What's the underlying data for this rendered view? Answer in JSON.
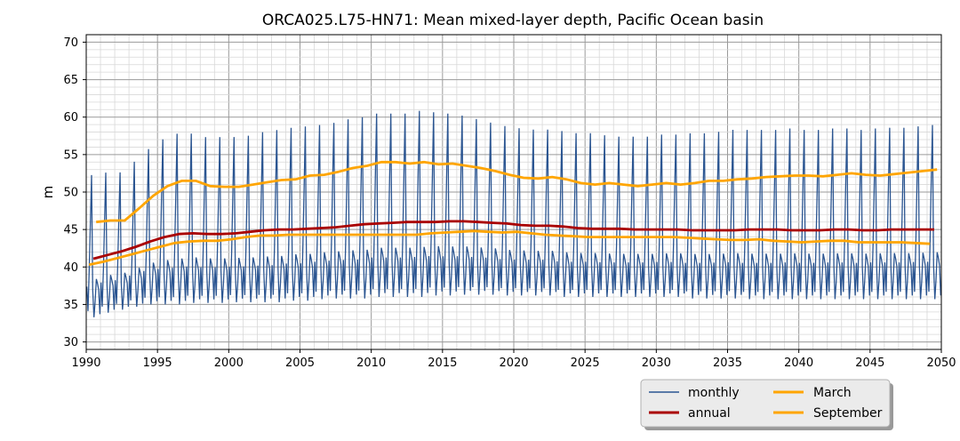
{
  "chart_data": {
    "type": "line",
    "title": "ORCA025.L75-HN71: Mean mixed-layer depth, Pacific Ocean basin",
    "xlabel": "",
    "ylabel": "m",
    "xlim": [
      1990,
      2050
    ],
    "ylim": [
      29,
      71
    ],
    "x_ticks": [
      1990,
      1995,
      2000,
      2005,
      2010,
      2015,
      2020,
      2025,
      2030,
      2035,
      2040,
      2045,
      2050
    ],
    "y_ticks": [
      30,
      35,
      40,
      45,
      50,
      55,
      60,
      65,
      70
    ],
    "grid": true,
    "legend_position": "below-right",
    "legend": [
      "monthly",
      "annual",
      "March",
      "September"
    ],
    "series": [
      {
        "name": "monthly",
        "color": "#2b5591",
        "monthly_peaks": [
          [
            1990,
            53.7
          ],
          [
            1991,
            54.0
          ],
          [
            1992,
            54.0
          ],
          [
            1993,
            55.5
          ],
          [
            1994,
            57.3
          ],
          [
            1995,
            58.7
          ],
          [
            1996,
            59.5
          ],
          [
            1997,
            59.5
          ],
          [
            1998,
            59.0
          ],
          [
            1999,
            59.0
          ],
          [
            2000,
            59.0
          ],
          [
            2001,
            59.2
          ],
          [
            2002,
            59.7
          ],
          [
            2003,
            60.0
          ],
          [
            2004,
            60.3
          ],
          [
            2005,
            60.5
          ],
          [
            2006,
            60.7
          ],
          [
            2007,
            61.0
          ],
          [
            2008,
            61.5
          ],
          [
            2009,
            61.8
          ],
          [
            2010,
            62.3
          ],
          [
            2011,
            62.3
          ],
          [
            2012,
            62.3
          ],
          [
            2013,
            62.7
          ],
          [
            2014,
            62.5
          ],
          [
            2015,
            62.3
          ],
          [
            2016,
            62.0
          ],
          [
            2017,
            61.5
          ],
          [
            2018,
            61.0
          ],
          [
            2019,
            60.5
          ],
          [
            2020,
            60.2
          ],
          [
            2021,
            60.0
          ],
          [
            2022,
            60.0
          ],
          [
            2023,
            59.8
          ],
          [
            2024,
            59.5
          ],
          [
            2025,
            59.5
          ],
          [
            2026,
            59.2
          ],
          [
            2027,
            59.0
          ],
          [
            2028,
            59.0
          ],
          [
            2029,
            59.0
          ],
          [
            2030,
            59.3
          ],
          [
            2031,
            59.3
          ],
          [
            2032,
            59.5
          ],
          [
            2033,
            59.5
          ],
          [
            2034,
            59.7
          ],
          [
            2035,
            60.0
          ],
          [
            2036,
            60.0
          ],
          [
            2037,
            60.0
          ],
          [
            2038,
            60.0
          ],
          [
            2039,
            60.2
          ],
          [
            2040,
            60.0
          ],
          [
            2041,
            60.0
          ],
          [
            2042,
            60.2
          ],
          [
            2043,
            60.2
          ],
          [
            2044,
            60.0
          ],
          [
            2045,
            60.2
          ],
          [
            2046,
            60.3
          ],
          [
            2047,
            60.3
          ],
          [
            2048,
            60.5
          ],
          [
            2049,
            60.7
          ]
        ],
        "monthly_troughs": [
          [
            1990,
            33.3
          ],
          [
            1991,
            33.9
          ],
          [
            1992,
            34.3
          ],
          [
            1993,
            34.7
          ],
          [
            1994,
            35.0
          ],
          [
            1995,
            35.0
          ],
          [
            1996,
            35.0
          ],
          [
            1997,
            35.2
          ],
          [
            1998,
            35.2
          ],
          [
            1999,
            35.2
          ],
          [
            2000,
            35.3
          ],
          [
            2001,
            35.3
          ],
          [
            2002,
            35.3
          ],
          [
            2003,
            35.3
          ],
          [
            2004,
            35.5
          ],
          [
            2005,
            35.5
          ],
          [
            2006,
            35.7
          ],
          [
            2007,
            35.8
          ],
          [
            2008,
            35.8
          ],
          [
            2009,
            35.8
          ],
          [
            2010,
            36.0
          ],
          [
            2011,
            36.0
          ],
          [
            2012,
            36.0
          ],
          [
            2013,
            36.0
          ],
          [
            2014,
            36.2
          ],
          [
            2015,
            36.2
          ],
          [
            2016,
            36.3
          ],
          [
            2017,
            36.3
          ],
          [
            2018,
            36.3
          ],
          [
            2019,
            36.2
          ],
          [
            2020,
            36.2
          ],
          [
            2021,
            36.2
          ],
          [
            2022,
            36.2
          ],
          [
            2023,
            36.0
          ],
          [
            2024,
            36.0
          ],
          [
            2025,
            36.0
          ],
          [
            2026,
            36.0
          ],
          [
            2027,
            36.0
          ],
          [
            2028,
            36.0
          ],
          [
            2029,
            36.0
          ],
          [
            2030,
            36.0
          ],
          [
            2031,
            36.0
          ],
          [
            2032,
            35.8
          ],
          [
            2033,
            35.8
          ],
          [
            2034,
            35.8
          ],
          [
            2035,
            35.8
          ],
          [
            2036,
            35.7
          ],
          [
            2037,
            35.7
          ],
          [
            2038,
            35.7
          ],
          [
            2039,
            35.7
          ],
          [
            2040,
            35.7
          ],
          [
            2041,
            35.7
          ],
          [
            2042,
            35.7
          ],
          [
            2043,
            35.7
          ],
          [
            2044,
            35.7
          ],
          [
            2045,
            35.7
          ],
          [
            2046,
            35.7
          ],
          [
            2047,
            35.7
          ],
          [
            2048,
            35.7
          ],
          [
            2049,
            35.7
          ]
        ]
      },
      {
        "name": "annual",
        "color": "#aa0000",
        "x": [
          1990.5,
          1991.5,
          1992.5,
          1993.5,
          1994.5,
          1995.5,
          1996.5,
          1997.5,
          1998.5,
          1999.5,
          2000.5,
          2001.5,
          2002.5,
          2003.5,
          2004.5,
          2005.5,
          2006.5,
          2007.5,
          2008.5,
          2009.5,
          2010.5,
          2011.5,
          2012.5,
          2013.5,
          2014.5,
          2015.5,
          2016.5,
          2017.5,
          2018.5,
          2019.5,
          2020.5,
          2021.5,
          2022.5,
          2023.5,
          2024.5,
          2025.5,
          2026.5,
          2027.5,
          2028.5,
          2029.5,
          2030.5,
          2031.5,
          2032.5,
          2033.5,
          2034.5,
          2035.5,
          2036.5,
          2037.5,
          2038.5,
          2039.5,
          2040.5,
          2041.5,
          2042.5,
          2043.5,
          2044.5,
          2045.5,
          2046.5,
          2047.5,
          2048.5,
          2049.5
        ],
        "values": [
          41.1,
          41.6,
          42.1,
          42.7,
          43.4,
          44.0,
          44.4,
          44.5,
          44.4,
          44.4,
          44.5,
          44.7,
          44.9,
          45.0,
          45.0,
          45.1,
          45.2,
          45.3,
          45.5,
          45.7,
          45.8,
          45.9,
          46.0,
          46.0,
          46.0,
          46.1,
          46.1,
          46.0,
          45.9,
          45.8,
          45.6,
          45.5,
          45.5,
          45.4,
          45.2,
          45.1,
          45.1,
          45.1,
          45.0,
          45.0,
          45.0,
          45.0,
          44.9,
          44.9,
          44.9,
          44.9,
          45.0,
          45.0,
          45.0,
          44.9,
          44.9,
          44.9,
          45.0,
          45.0,
          44.9,
          44.9,
          45.0,
          45.0,
          45.0,
          45.0
        ]
      },
      {
        "name": "March",
        "color": "#ffa500",
        "x": [
          1990.7,
          1991.7,
          1992.7,
          1993.7,
          1994.7,
          1995.7,
          1996.7,
          1997.7,
          1998.7,
          1999.7,
          2000.7,
          2001.7,
          2002.7,
          2003.7,
          2004.7,
          2005.7,
          2006.7,
          2007.7,
          2008.7,
          2009.7,
          2010.7,
          2011.7,
          2012.7,
          2013.7,
          2014.7,
          2015.7,
          2016.7,
          2017.7,
          2018.7,
          2019.7,
          2020.7,
          2021.7,
          2022.7,
          2023.7,
          2024.7,
          2025.7,
          2026.7,
          2027.7,
          2028.7,
          2029.7,
          2030.7,
          2031.7,
          2032.7,
          2033.7,
          2034.7,
          2035.7,
          2036.7,
          2037.7,
          2038.7,
          2039.7,
          2040.7,
          2041.7,
          2042.7,
          2043.7,
          2044.7,
          2045.7,
          2046.7,
          2047.7,
          2048.7,
          2049.7
        ],
        "values": [
          46.0,
          46.2,
          46.2,
          47.8,
          49.5,
          50.8,
          51.5,
          51.5,
          50.8,
          50.7,
          50.7,
          51.0,
          51.3,
          51.6,
          51.7,
          52.2,
          52.3,
          52.7,
          53.2,
          53.5,
          54.0,
          54.0,
          53.8,
          54.0,
          53.7,
          53.8,
          53.5,
          53.2,
          52.8,
          52.3,
          51.9,
          51.8,
          52.0,
          51.7,
          51.2,
          51.0,
          51.2,
          51.0,
          50.8,
          51.0,
          51.2,
          51.0,
          51.2,
          51.5,
          51.5,
          51.7,
          51.8,
          52.0,
          52.1,
          52.2,
          52.2,
          52.1,
          52.3,
          52.5,
          52.3,
          52.2,
          52.4,
          52.6,
          52.8,
          53.0
        ]
      },
      {
        "name": "September",
        "color": "#ffa500",
        "x": [
          1990.2,
          1991.2,
          1992.2,
          1993.2,
          1994.2,
          1995.2,
          1996.2,
          1997.2,
          1998.2,
          1999.2,
          2000.2,
          2001.2,
          2002.2,
          2003.2,
          2004.2,
          2005.2,
          2006.2,
          2007.2,
          2008.2,
          2009.2,
          2010.2,
          2011.2,
          2012.2,
          2013.2,
          2014.2,
          2015.2,
          2016.2,
          2017.2,
          2018.2,
          2019.2,
          2020.2,
          2021.2,
          2022.2,
          2023.2,
          2024.2,
          2025.2,
          2026.2,
          2027.2,
          2028.2,
          2029.2,
          2030.2,
          2031.2,
          2032.2,
          2033.2,
          2034.2,
          2035.2,
          2036.2,
          2037.2,
          2038.2,
          2039.2,
          2040.2,
          2041.2,
          2042.2,
          2043.2,
          2044.2,
          2045.2,
          2046.2,
          2047.2,
          2048.2,
          2049.2
        ],
        "values": [
          40.3,
          40.7,
          41.2,
          41.7,
          42.2,
          42.7,
          43.2,
          43.4,
          43.5,
          43.5,
          43.7,
          44.0,
          44.2,
          44.2,
          44.3,
          44.3,
          44.3,
          44.3,
          44.3,
          44.3,
          44.3,
          44.3,
          44.3,
          44.3,
          44.5,
          44.6,
          44.7,
          44.8,
          44.7,
          44.6,
          44.7,
          44.5,
          44.3,
          44.2,
          44.1,
          44.0,
          44.0,
          44.0,
          44.0,
          44.0,
          44.0,
          44.0,
          43.9,
          43.8,
          43.7,
          43.6,
          43.6,
          43.7,
          43.5,
          43.4,
          43.3,
          43.4,
          43.5,
          43.5,
          43.3,
          43.3,
          43.3,
          43.3,
          43.2,
          43.1
        ]
      }
    ]
  }
}
